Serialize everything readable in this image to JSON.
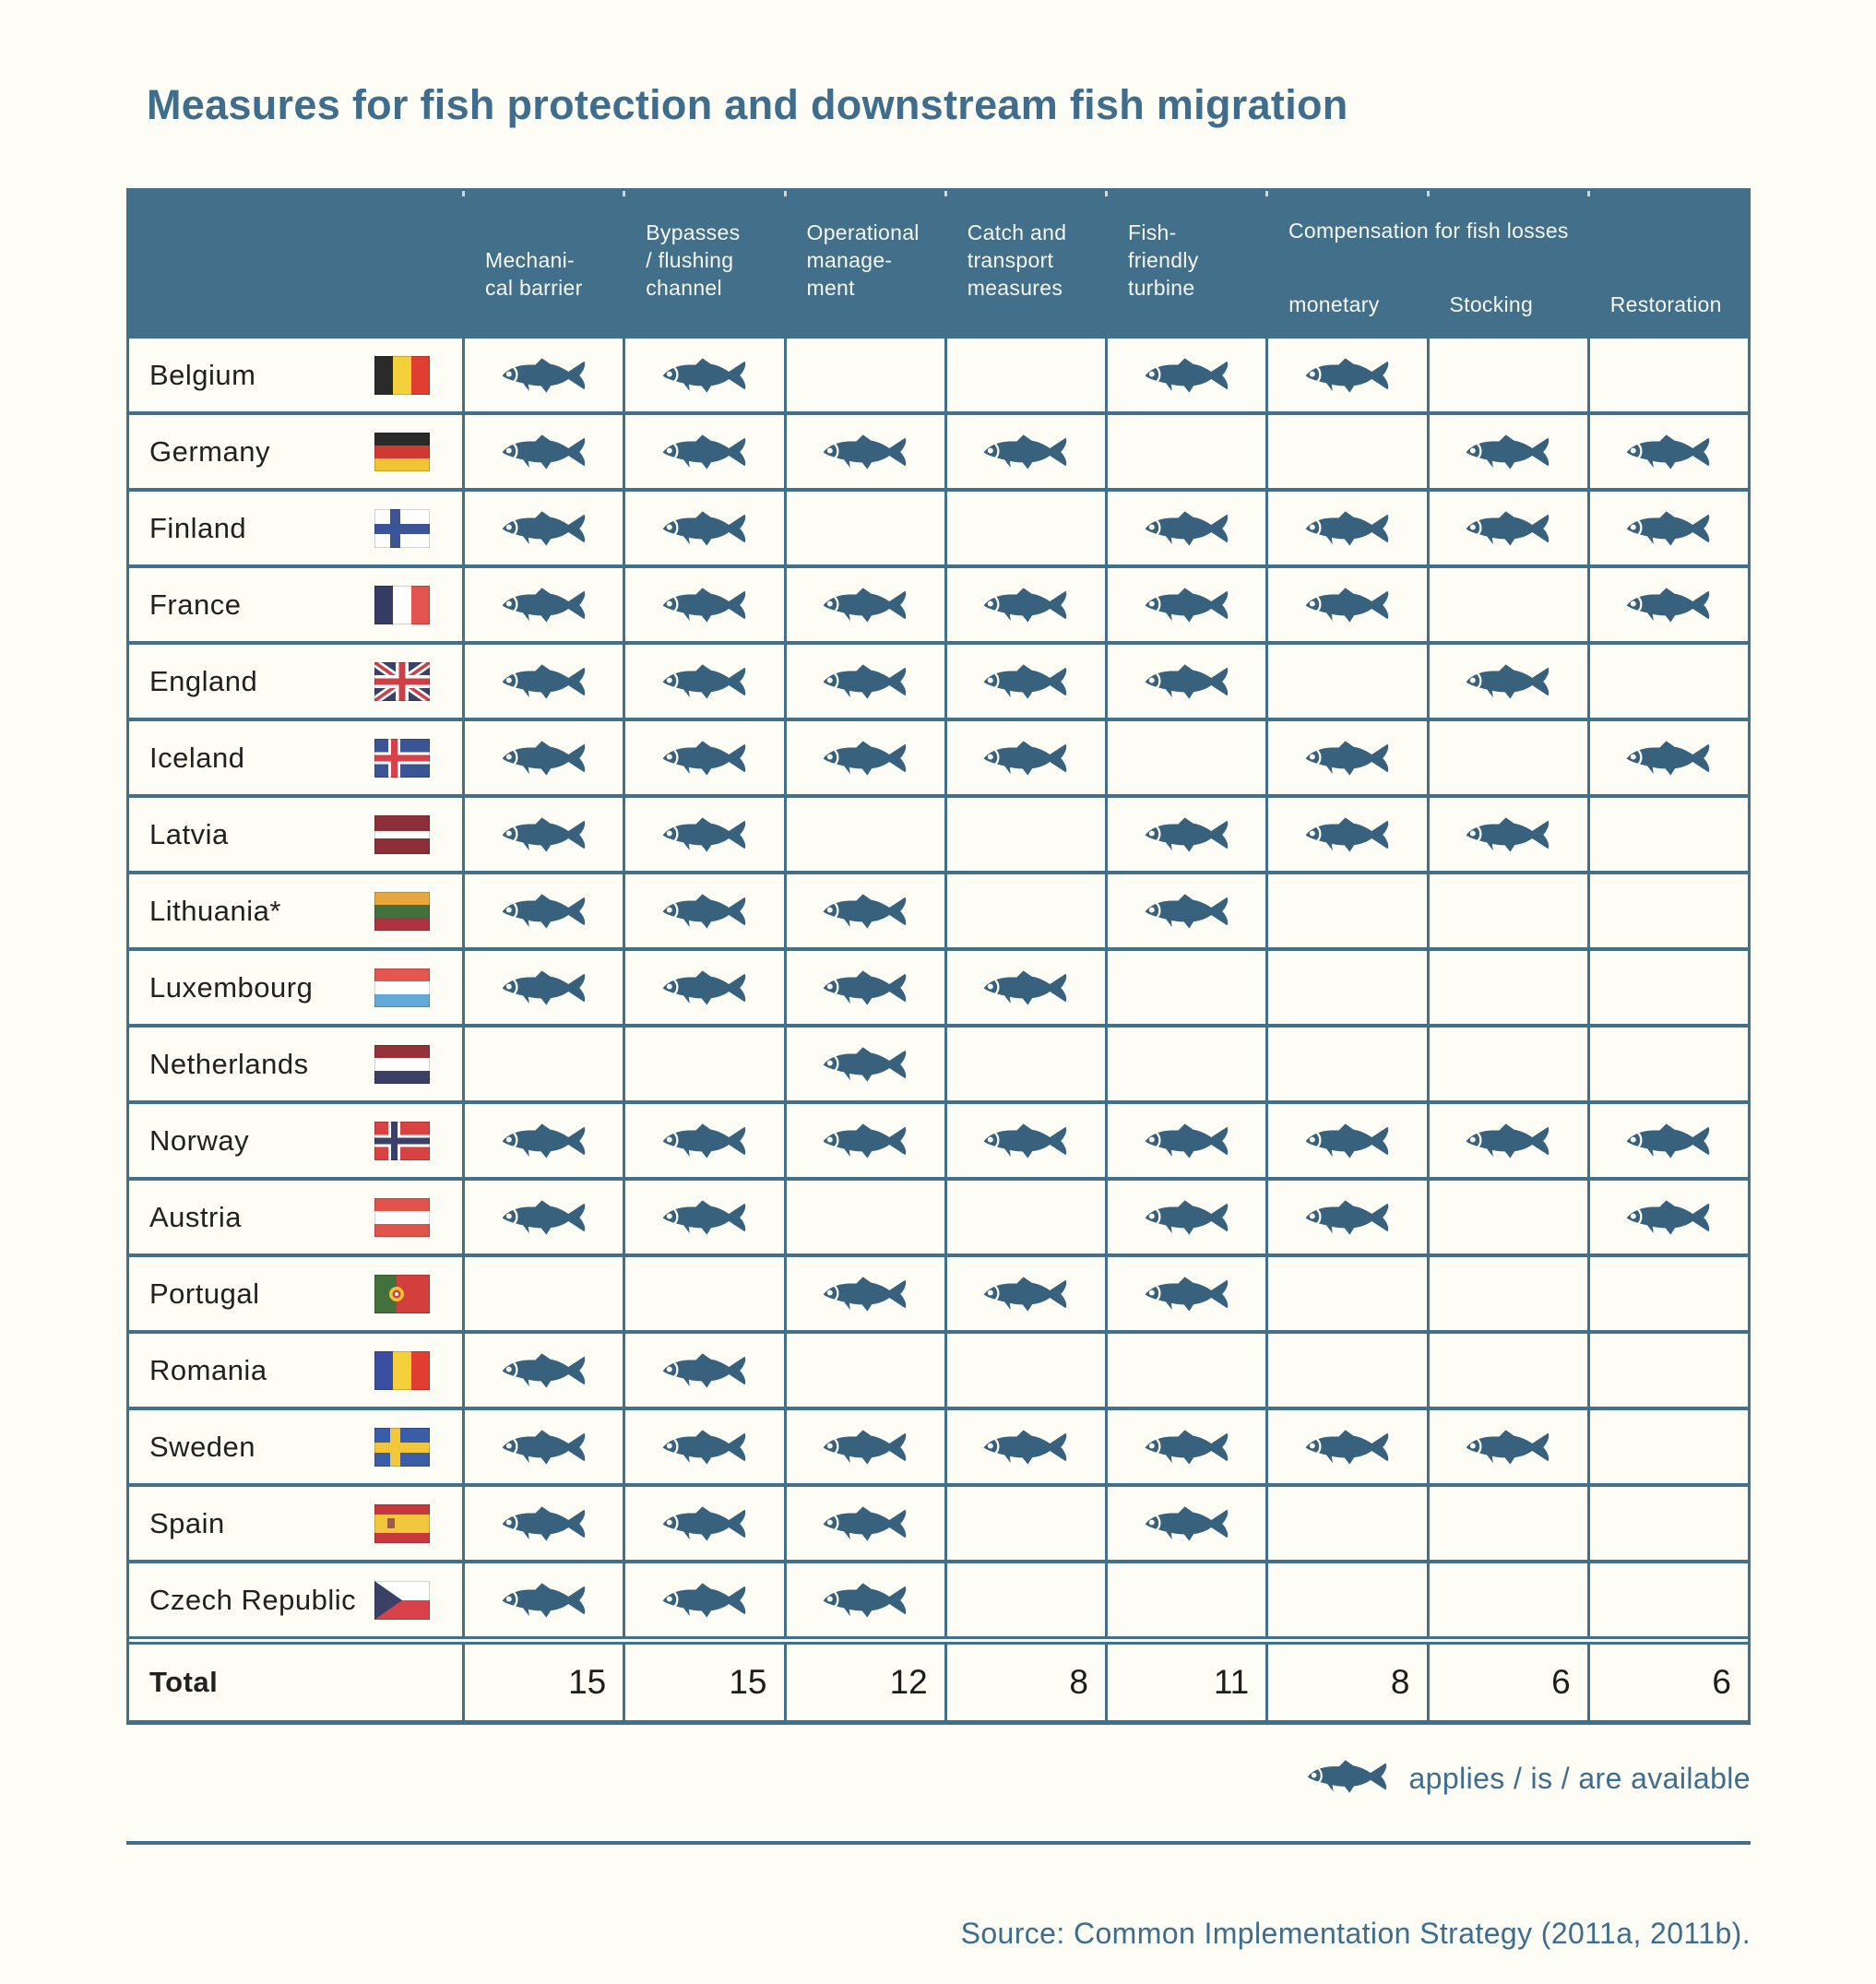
{
  "title": "Measures for fish protection and downstream fish migration",
  "header": {
    "measure_columns": [
      {
        "lines": [
          "Mechani-",
          "cal barrier"
        ]
      },
      {
        "lines": [
          "Bypasses",
          "/ flushing",
          "channel"
        ]
      },
      {
        "lines": [
          "Operational",
          "manage-",
          "ment"
        ]
      },
      {
        "lines": [
          "Catch and",
          "transport",
          "measures"
        ]
      },
      {
        "lines": [
          "Fish-",
          "friendly",
          "turbine"
        ]
      }
    ],
    "group_label": "Compensation for fish losses",
    "group_sub_labels": [
      "monetary",
      "Stocking",
      "Restoration"
    ]
  },
  "total_label": "Total",
  "legend_text": "applies / is / are available",
  "source_text": "Source: Common Implementation Strategy (2011a, 2011b).",
  "colors": {
    "teal": "#426f8a",
    "fish": "#37617c",
    "accent_text": "#3e6d8e",
    "page_bg": "#fdfcf5",
    "body_text": "#222120"
  },
  "chart_data": {
    "type": "table",
    "title": "Measures for fish protection and downstream fish migration",
    "columns": [
      "Mechanical barrier",
      "Bypasses / flushing channel",
      "Operational management",
      "Catch and transport measures",
      "Fish-friendly turbine",
      "Compensation for fish losses – monetary",
      "Compensation for fish losses – Stocking",
      "Compensation for fish losses – Restoration"
    ],
    "cell_symbol": "fish icon = applies / is / are available",
    "rows": [
      {
        "country": "Belgium",
        "flag": "belgium",
        "values": [
          1,
          1,
          0,
          0,
          1,
          1,
          0,
          0
        ]
      },
      {
        "country": "Germany",
        "flag": "germany",
        "values": [
          1,
          1,
          1,
          1,
          0,
          0,
          1,
          1
        ]
      },
      {
        "country": "Finland",
        "flag": "finland",
        "values": [
          1,
          1,
          0,
          0,
          1,
          1,
          1,
          1
        ]
      },
      {
        "country": "France",
        "flag": "france",
        "values": [
          1,
          1,
          1,
          1,
          1,
          1,
          0,
          1
        ]
      },
      {
        "country": "England",
        "flag": "england",
        "values": [
          1,
          1,
          1,
          1,
          1,
          0,
          1,
          0
        ]
      },
      {
        "country": "Iceland",
        "flag": "iceland",
        "values": [
          1,
          1,
          1,
          1,
          0,
          1,
          0,
          1
        ]
      },
      {
        "country": "Latvia",
        "flag": "latvia",
        "values": [
          1,
          1,
          0,
          0,
          1,
          1,
          1,
          0
        ]
      },
      {
        "country": "Lithuania*",
        "flag": "lithuania",
        "values": [
          1,
          1,
          1,
          0,
          1,
          0,
          0,
          0
        ]
      },
      {
        "country": "Luxembourg",
        "flag": "luxembourg",
        "values": [
          1,
          1,
          1,
          1,
          0,
          0,
          0,
          0
        ]
      },
      {
        "country": "Netherlands",
        "flag": "netherlands",
        "values": [
          0,
          0,
          1,
          0,
          0,
          0,
          0,
          0
        ]
      },
      {
        "country": "Norway",
        "flag": "norway",
        "values": [
          1,
          1,
          1,
          1,
          1,
          1,
          1,
          1
        ]
      },
      {
        "country": "Austria",
        "flag": "austria",
        "values": [
          1,
          1,
          0,
          0,
          1,
          1,
          0,
          1
        ]
      },
      {
        "country": "Portugal",
        "flag": "portugal",
        "values": [
          0,
          0,
          1,
          1,
          1,
          0,
          0,
          0
        ]
      },
      {
        "country": "Romania",
        "flag": "romania",
        "values": [
          1,
          1,
          0,
          0,
          0,
          0,
          0,
          0
        ]
      },
      {
        "country": "Sweden",
        "flag": "sweden",
        "values": [
          1,
          1,
          1,
          1,
          1,
          1,
          1,
          0
        ]
      },
      {
        "country": "Spain",
        "flag": "spain",
        "values": [
          1,
          1,
          1,
          0,
          1,
          0,
          0,
          0
        ]
      },
      {
        "country": "Czech Republic",
        "flag": "czech-republic",
        "values": [
          1,
          1,
          1,
          0,
          0,
          0,
          0,
          0
        ]
      }
    ],
    "totals": [
      15,
      15,
      12,
      8,
      11,
      8,
      6,
      6
    ]
  }
}
